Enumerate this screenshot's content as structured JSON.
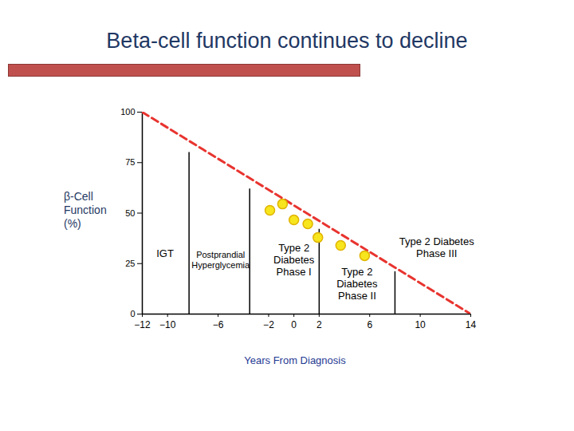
{
  "chart_data": {
    "type": "line",
    "title": "Beta-cell function continues to decline",
    "x_label": "Years From Diagnosis",
    "y_label": "β-Cell Function (%)",
    "xlim": [
      -12,
      14
    ],
    "xticks": [
      -12,
      -10,
      -6,
      -2,
      0,
      2,
      6,
      10,
      14
    ],
    "ylim": [
      0,
      100
    ],
    "yticks": [
      0,
      25,
      50,
      75,
      100
    ],
    "grid": false,
    "series": [
      {
        "type": "line",
        "color": "#e8342f",
        "line_style": "dashed",
        "x": [
          -12,
          14
        ],
        "values": [
          100,
          0
        ]
      },
      {
        "type": "scatter",
        "color": "#f7e51d",
        "marker": "circle",
        "x": [
          -1.9,
          -0.9,
          0,
          1.1,
          1.9,
          3.7,
          5.6
        ],
        "values": [
          51.4,
          54.5,
          46.6,
          44.7,
          37.9,
          34,
          28.9
        ]
      }
    ],
    "phase_lines": [
      {
        "x": -8.3,
        "top": 80
      },
      {
        "x": -3.5,
        "top": 62
      },
      {
        "x": 2,
        "top": 42
      },
      {
        "x": 8,
        "top": 21
      }
    ],
    "annotations": [
      {
        "text": "IGT",
        "x": -10.2,
        "y": 30
      },
      {
        "text": "Postprandial\nHyperglycemia",
        "x": -5.8,
        "y": 27
      },
      {
        "text": "Type 2\nDiabetes\nPhase I",
        "x": 0,
        "y": 27
      },
      {
        "text": "Type 2\nDiabetes\nPhase II",
        "x": 5,
        "y": 15
      },
      {
        "text": "Type 2 Diabetes\nPhase III",
        "x": 11.3,
        "y": 33
      }
    ]
  }
}
